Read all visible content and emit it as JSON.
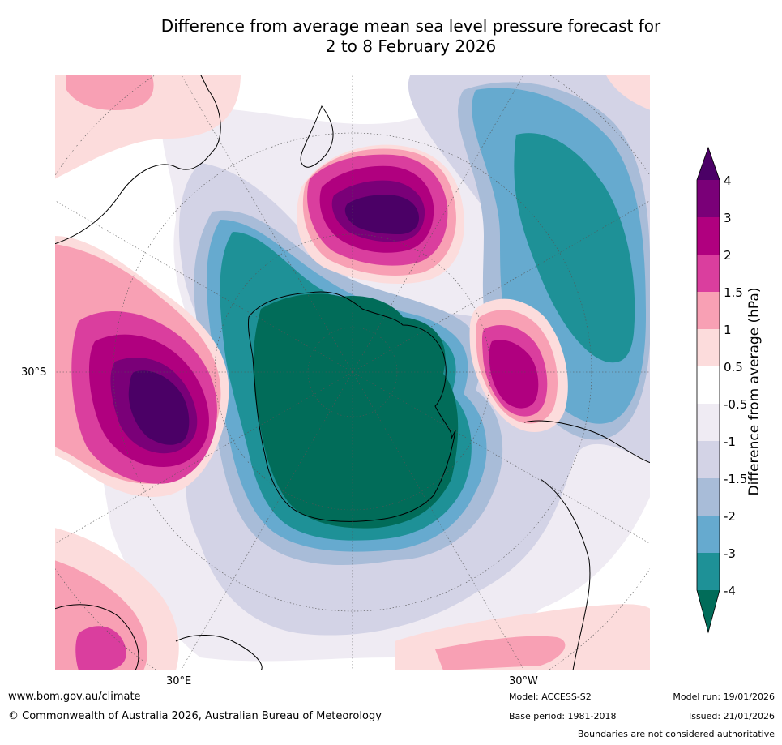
{
  "title": {
    "line1": "Difference from average mean sea level pressure forecast for",
    "line2": "2 to 8 February 2026"
  },
  "map": {
    "projection": "South polar stereographic",
    "lat_label": "30°S",
    "lon_labels": {
      "east": "30°E",
      "west": "30°W"
    }
  },
  "legend": {
    "title": "Difference from average (hPa)",
    "ticks": [
      "4",
      "3",
      "2",
      "1.5",
      "1",
      "0.5",
      "-0.5",
      "-1",
      "-1.5",
      "-2",
      "-3",
      "-4"
    ],
    "colors": {
      "gt4": "#4b0066",
      "3_4": "#7a0078",
      "2_3": "#b0007f",
      "1.5_2": "#da3e9e",
      "1_1.5": "#f8a0b4",
      "0.5_1": "#fcdcdc",
      "neutral": "#ffffff",
      "-1_-0.5": "#efebf3",
      "-1.5_-1": "#d3d3e6",
      "-2_-1.5": "#a8bcd8",
      "-3_-2": "#66aacf",
      "-4_-3": "#1e9197",
      "lt-4": "#016c59"
    }
  },
  "footer": {
    "website": "www.bom.gov.au/climate",
    "copyright": "© Commonwealth of Australia 2026, Australian Bureau of Meteorology",
    "model": "Model: ACCESS-S2",
    "base_period": "Base period: 1981-2018",
    "model_run": "Model run: 19/01/2026",
    "issued": "Issued: 21/01/2026",
    "disclaimer": "Boundaries are not considered authoritative"
  }
}
